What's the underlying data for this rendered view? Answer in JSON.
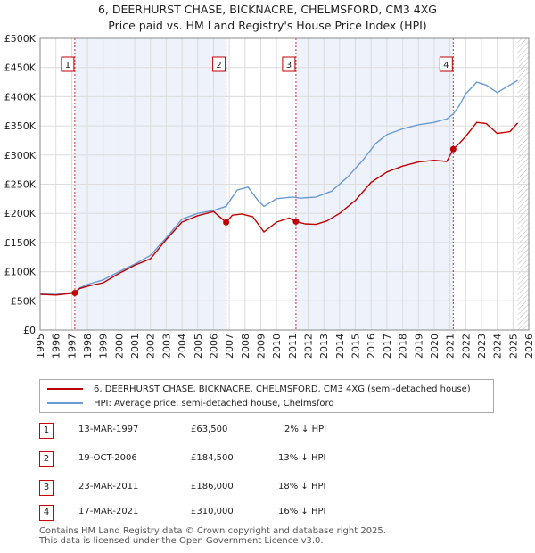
{
  "title_line1": "6, DEERHURST CHASE, BICKNACRE, CHELMSFORD, CM3 4XG",
  "title_line2": "Price paid vs. HM Land Registry's House Price Index (HPI)",
  "colors": {
    "property": "#c00000",
    "hpi": "#6a9ad4",
    "shade": "#eef2fb",
    "grid": "#dcdcdc",
    "marker": "#c00000"
  },
  "legend": {
    "property_label": "6, DEERHURST CHASE, BICKNACRE, CHELMSFORD, CM3 4XG (semi-detached house)",
    "hpi_label": "HPI: Average price, semi-detached house, Chelmsford"
  },
  "transactions": [
    {
      "num": "1",
      "date": "13-MAR-1997",
      "price": "£63,500",
      "delta": "2% ↓ HPI"
    },
    {
      "num": "2",
      "date": "19-OCT-2006",
      "price": "£184,500",
      "delta": "13% ↓ HPI"
    },
    {
      "num": "3",
      "date": "23-MAR-2011",
      "price": "£186,000",
      "delta": "18% ↓ HPI"
    },
    {
      "num": "4",
      "date": "17-MAR-2021",
      "price": "£310,000",
      "delta": "16% ↓ HPI"
    }
  ],
  "footer_line1": "Contains HM Land Registry data © Crown copyright and database right 2025.",
  "footer_line2": "This data is licensed under the Open Government Licence v3.0.",
  "chart_data": {
    "type": "line",
    "title": "6, DEERHURST CHASE, BICKNACRE, CHELMSFORD, CM3 4XG — Price paid vs. HM Land Registry's House Price Index (HPI)",
    "xlabel": "",
    "ylabel": "",
    "xlim": [
      1995,
      2026
    ],
    "ylim": [
      0,
      500000
    ],
    "x_ticks": [
      1995,
      1996,
      1997,
      1998,
      1999,
      2000,
      2001,
      2002,
      2003,
      2004,
      2005,
      2006,
      2007,
      2008,
      2009,
      2010,
      2011,
      2012,
      2013,
      2014,
      2015,
      2016,
      2017,
      2018,
      2019,
      2020,
      2021,
      2022,
      2023,
      2024,
      2025,
      2026
    ],
    "y_ticks": [
      0,
      50000,
      100000,
      150000,
      200000,
      250000,
      300000,
      350000,
      400000,
      450000,
      500000
    ],
    "y_tick_labels": [
      "£0",
      "£50K",
      "£100K",
      "£150K",
      "£200K",
      "£250K",
      "£300K",
      "£350K",
      "£400K",
      "£450K",
      "£500K"
    ],
    "sale_markers": [
      {
        "label": "1",
        "x": 1997.2,
        "y": 63500
      },
      {
        "label": "2",
        "x": 2006.8,
        "y": 184500
      },
      {
        "label": "3",
        "x": 2011.23,
        "y": 186000
      },
      {
        "label": "4",
        "x": 2021.21,
        "y": 310000
      }
    ],
    "shaded_periods": [
      [
        1997.2,
        2006.8
      ],
      [
        2011.23,
        2021.21
      ]
    ],
    "future_hatch_from": 2025.3,
    "series": [
      {
        "name": "6, DEERHURST CHASE, BICKNACRE, CHELMSFORD, CM3 4XG (semi-detached house)",
        "x": [
          1995,
          1996,
          1997.2,
          1997.5,
          1998,
          1999,
          2000,
          2001,
          2002,
          2003,
          2004,
          2005,
          2006.0,
          2006.8,
          2007.2,
          2007.8,
          2008.5,
          2009.2,
          2010.0,
          2010.8,
          2011.23,
          2011.8,
          2012.5,
          2013.2,
          2014.0,
          2015.0,
          2016.0,
          2017.0,
          2018.0,
          2019.0,
          2020.0,
          2020.8,
          2021.21,
          2021.6,
          2022.0,
          2022.7,
          2023.3,
          2024.0,
          2024.8,
          2025.3
        ],
        "y": [
          61000,
          60000,
          63500,
          71000,
          75000,
          81000,
          97000,
          111000,
          122000,
          155000,
          185000,
          196000,
          203000,
          184500,
          197000,
          199000,
          194000,
          168000,
          185000,
          192000,
          186000,
          182000,
          181000,
          187000,
          200000,
          222000,
          253000,
          271000,
          281000,
          288000,
          291000,
          289000,
          310000,
          320000,
          332000,
          356000,
          354000,
          337000,
          340000,
          355000
        ]
      },
      {
        "name": "HPI: Average price, semi-detached house, Chelmsford",
        "x": [
          1995,
          1996,
          1997.2,
          1997.5,
          1998,
          1999,
          2000,
          2001,
          2002,
          2003,
          2004,
          2005,
          2006.0,
          2006.8,
          2007.5,
          2008.2,
          2008.8,
          2009.2,
          2010.0,
          2011.0,
          2011.5,
          2012.5,
          2013.5,
          2014.5,
          2015.5,
          2016.3,
          2017.0,
          2018.0,
          2019.0,
          2020.0,
          2020.8,
          2021.2,
          2021.6,
          2022.0,
          2022.7,
          2023.3,
          2024.0,
          2024.8,
          2025.3
        ],
        "y": [
          62000,
          61000,
          65000,
          72000,
          78000,
          86000,
          100000,
          113000,
          128000,
          158000,
          190000,
          200000,
          205000,
          212000,
          240000,
          245000,
          223000,
          212000,
          225000,
          228000,
          226000,
          228000,
          238000,
          262000,
          292000,
          320000,
          335000,
          345000,
          352000,
          356000,
          362000,
          370000,
          385000,
          405000,
          425000,
          420000,
          407000,
          420000,
          428000
        ]
      }
    ]
  }
}
